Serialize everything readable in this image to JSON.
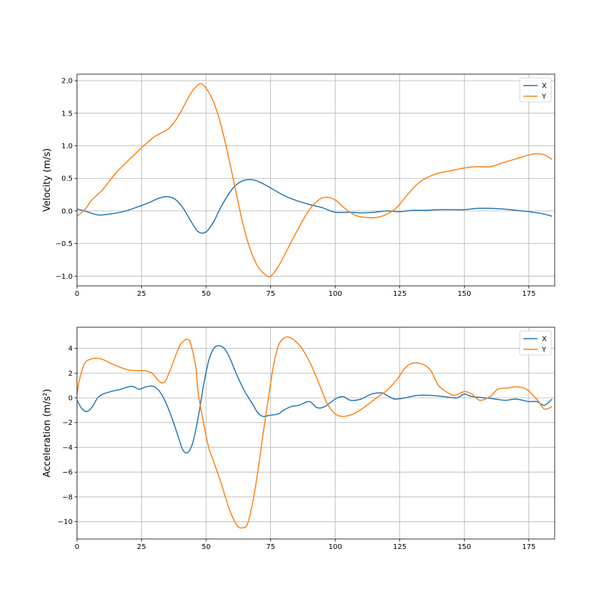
{
  "chart_data": [
    {
      "type": "line",
      "title": "",
      "xlabel": "",
      "ylabel": "Velocity (m/s)",
      "xlim": [
        0,
        185
      ],
      "ylim": [
        -1.15,
        2.1
      ],
      "xticks": [
        0,
        25,
        50,
        75,
        100,
        125,
        150,
        175
      ],
      "yticks": [
        -1.0,
        -0.5,
        0.0,
        0.5,
        1.0,
        1.5,
        2.0
      ],
      "ytick_labels": [
        "−1.0",
        "−0.5",
        "0.0",
        "0.5",
        "1.0",
        "1.5",
        "2.0"
      ],
      "grid": true,
      "legend": "top-right",
      "series": [
        {
          "name": "X",
          "color": "#1f77b4",
          "x": [
            0,
            3,
            8,
            12,
            18,
            24,
            28,
            32,
            35,
            38,
            41,
            44,
            47,
            50,
            53,
            56,
            60,
            63,
            66,
            69,
            72,
            76,
            80,
            85,
            90,
            95,
            100,
            105,
            110,
            115,
            120,
            125,
            130,
            135,
            140,
            145,
            150,
            155,
            160,
            165,
            170,
            175,
            180,
            184
          ],
          "values": [
            0.03,
            0.0,
            -0.06,
            -0.05,
            -0.01,
            0.07,
            0.13,
            0.2,
            0.22,
            0.18,
            0.05,
            -0.15,
            -0.32,
            -0.32,
            -0.16,
            0.08,
            0.33,
            0.44,
            0.48,
            0.47,
            0.42,
            0.33,
            0.24,
            0.16,
            0.1,
            0.05,
            -0.02,
            -0.02,
            -0.03,
            -0.02,
            0.0,
            -0.01,
            0.01,
            0.01,
            0.02,
            0.02,
            0.02,
            0.04,
            0.04,
            0.03,
            0.01,
            -0.01,
            -0.04,
            -0.08
          ]
        },
        {
          "name": "Y",
          "color": "#ff7f0e",
          "x": [
            0,
            3,
            6,
            10,
            15,
            20,
            25,
            30,
            35,
            38,
            41,
            44,
            47,
            49,
            52,
            55,
            58,
            61,
            64,
            67,
            70,
            73,
            75,
            78,
            82,
            86,
            90,
            94,
            97,
            100,
            104,
            108,
            112,
            116,
            120,
            124,
            128,
            132,
            136,
            140,
            145,
            150,
            155,
            160,
            165,
            170,
            175,
            178,
            181,
            184
          ],
          "values": [
            -0.08,
            0.02,
            0.18,
            0.33,
            0.58,
            0.78,
            0.97,
            1.14,
            1.25,
            1.38,
            1.58,
            1.8,
            1.94,
            1.93,
            1.75,
            1.43,
            0.95,
            0.4,
            -0.15,
            -0.58,
            -0.85,
            -0.98,
            -1.0,
            -0.85,
            -0.55,
            -0.25,
            0.02,
            0.18,
            0.21,
            0.17,
            0.03,
            -0.07,
            -0.1,
            -0.1,
            -0.05,
            0.06,
            0.25,
            0.42,
            0.52,
            0.58,
            0.62,
            0.66,
            0.68,
            0.68,
            0.74,
            0.8,
            0.86,
            0.88,
            0.86,
            0.79
          ]
        }
      ]
    },
    {
      "type": "line",
      "title": "",
      "xlabel": "",
      "ylabel": "Acceleration (m/s²)",
      "xlim": [
        0,
        185
      ],
      "ylim": [
        -11.4,
        5.7
      ],
      "xticks": [
        0,
        25,
        50,
        75,
        100,
        125,
        150,
        175
      ],
      "yticks": [
        -10,
        -8,
        -6,
        -4,
        -2,
        0,
        2,
        4
      ],
      "ytick_labels": [
        "−10",
        "−8",
        "−6",
        "−4",
        "−2",
        "0",
        "2",
        "4"
      ],
      "grid": true,
      "legend": "top-right",
      "series": [
        {
          "name": "X",
          "color": "#1f77b4",
          "x": [
            0,
            2,
            4,
            6,
            8,
            10,
            13,
            17,
            20,
            22,
            24,
            27,
            30,
            33,
            36,
            39,
            41,
            43,
            45,
            47,
            49,
            51,
            53,
            55,
            57,
            59,
            62,
            65,
            68,
            70,
            72,
            75,
            78,
            80,
            83,
            86,
            90,
            93,
            96,
            100,
            103,
            106,
            110,
            114,
            118,
            120,
            123,
            127,
            132,
            137,
            142,
            147,
            150,
            153,
            158,
            162,
            166,
            170,
            175,
            178,
            181,
            184
          ],
          "values": [
            -0.2,
            -0.9,
            -1.1,
            -0.7,
            0.0,
            0.3,
            0.5,
            0.7,
            0.9,
            0.9,
            0.7,
            0.9,
            0.9,
            0.2,
            -1.2,
            -3.0,
            -4.2,
            -4.4,
            -3.5,
            -1.5,
            1.0,
            3.0,
            4.0,
            4.2,
            4.0,
            3.3,
            1.8,
            0.5,
            -0.5,
            -1.2,
            -1.5,
            -1.4,
            -1.3,
            -1.0,
            -0.7,
            -0.6,
            -0.3,
            -0.8,
            -0.7,
            -0.1,
            0.1,
            -0.2,
            -0.1,
            0.3,
            0.4,
            0.2,
            -0.1,
            0.0,
            0.2,
            0.2,
            0.1,
            0.0,
            0.3,
            0.1,
            0.0,
            -0.1,
            -0.2,
            -0.1,
            -0.3,
            -0.3,
            -0.6,
            -0.1
          ]
        },
        {
          "name": "Y",
          "color": "#ff7f0e",
          "x": [
            0,
            1,
            3,
            5,
            7,
            10,
            14,
            19,
            23,
            26,
            29,
            32,
            34,
            36,
            38,
            40,
            42,
            43,
            44,
            46,
            47,
            49,
            51,
            53,
            56,
            59,
            62,
            64,
            66,
            68,
            70,
            72,
            74,
            76,
            78,
            80,
            82,
            85,
            88,
            91,
            94,
            97,
            100,
            103,
            107,
            111,
            116,
            120,
            124,
            127,
            130,
            134,
            137,
            140,
            143,
            146,
            150,
            153,
            156,
            160,
            163,
            167,
            170,
            174,
            178,
            181,
            184
          ],
          "values": [
            0.3,
            1.5,
            2.8,
            3.1,
            3.2,
            3.1,
            2.7,
            2.3,
            2.2,
            2.2,
            2.0,
            1.3,
            1.3,
            2.2,
            3.3,
            4.3,
            4.7,
            4.7,
            4.4,
            2.5,
            0.3,
            -2.0,
            -4.0,
            -5.2,
            -7.0,
            -9.0,
            -10.3,
            -10.5,
            -10.2,
            -8.5,
            -6.0,
            -3.0,
            -0.2,
            2.5,
            4.2,
            4.8,
            4.9,
            4.5,
            3.7,
            2.5,
            1.0,
            -0.5,
            -1.3,
            -1.5,
            -1.3,
            -0.8,
            0.0,
            0.6,
            1.5,
            2.4,
            2.8,
            2.7,
            2.2,
            1.0,
            0.5,
            0.2,
            0.5,
            0.3,
            -0.2,
            0.1,
            0.7,
            0.8,
            0.9,
            0.7,
            -0.1,
            -0.9,
            -0.7
          ]
        }
      ]
    }
  ]
}
